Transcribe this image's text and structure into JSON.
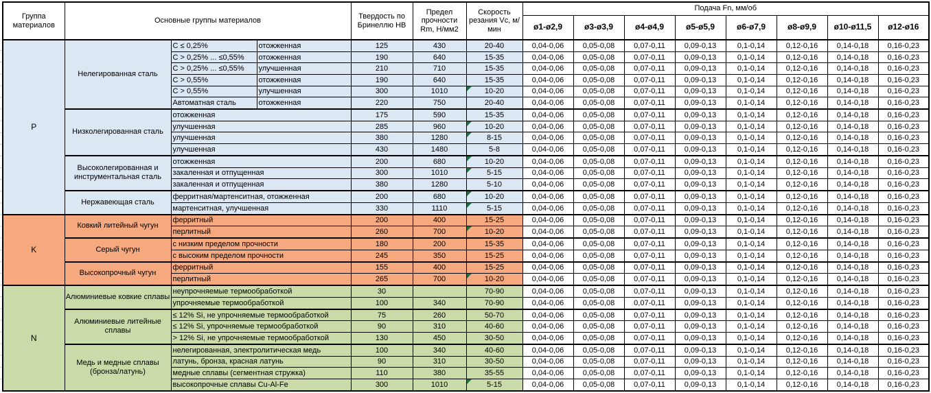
{
  "header": {
    "col_group": "Группа материалов",
    "col_main_groups": "Основные группы материалов",
    "col_hardness": "Твердость по Бринеллю HB",
    "col_strength": "Предел прочности Rm, Н/мм2",
    "col_speed": "Скорость резания Vc, м/мин",
    "feed_title": "Подача Fn, мм/об",
    "feed_cols": [
      "ø1-ø2,9",
      "ø3-ø3,9",
      "ø4-ø4,9",
      "ø5-ø5,9",
      "ø6-ø7,9",
      "ø8-ø9,9",
      "ø10-ø11,5",
      "ø12-ø16"
    ]
  },
  "feed_values": [
    "0,04-0,06",
    "0,05-0,08",
    "0,07-0,11",
    "0,09-0,13",
    "0,1-0,14",
    "0,12-0,16",
    "0,14-0,18",
    "0,16-0,23"
  ],
  "colors": {
    "group_p": "#dbe7f3",
    "group_k": "#f6a97e",
    "group_n": "#c9dba8",
    "border": "#000000",
    "note_triangle": "#1e7145"
  },
  "groups": [
    {
      "code": "P",
      "color": "#dbe7f3",
      "subgroups": [
        {
          "name": "Нелегированная сталь",
          "rows": [
            {
              "c": "C ≤ 0,25%",
              "state": "отожженная",
              "hb": "125",
              "rm": "430",
              "vc": "20-40"
            },
            {
              "c": "C > 0,25% ... ≤0,55%",
              "state": "отожженная",
              "hb": "190",
              "rm": "640",
              "vc": "15-35"
            },
            {
              "c": "C > 0,25% ... ≤0,55%",
              "state": "улучшенная",
              "hb": "210",
              "rm": "710",
              "vc": "15-35"
            },
            {
              "c": "C > 0,55%",
              "state": "отожженная",
              "hb": "190",
              "rm": "640",
              "vc": "15-35"
            },
            {
              "c": "C > 0,55%",
              "state": "улучшенная",
              "hb": "300",
              "rm": "1010",
              "vc": "10-20",
              "note": true
            },
            {
              "c": "Автоматная сталь",
              "state": "отожженная",
              "hb": "220",
              "rm": "750",
              "vc": "20-40"
            }
          ]
        },
        {
          "name": "Низколегированная сталь",
          "rows": [
            {
              "state": "отожженная",
              "hb": "175",
              "rm": "590",
              "vc": "15-35"
            },
            {
              "state": "улучшенная",
              "hb": "285",
              "rm": "960",
              "vc": "10-20",
              "note": true
            },
            {
              "state": "улучшенная",
              "hb": "380",
              "rm": "1280",
              "vc": "8-15",
              "note": true
            },
            {
              "state": "улучшенная",
              "hb": "430",
              "rm": "1480",
              "vc": "5-8"
            }
          ]
        },
        {
          "name": "Высоколегированная и инструментальная сталь",
          "rows": [
            {
              "state": "отожженная",
              "hb": "200",
              "rm": "680",
              "vc": "10-20",
              "note": true
            },
            {
              "state": "закаленная и отпущенная",
              "hb": "300",
              "rm": "1010",
              "vc": "5-15",
              "note": true
            },
            {
              "state": "закаленная и отпущенная",
              "hb": "380",
              "rm": "1280",
              "vc": "5-10"
            }
          ]
        },
        {
          "name": "Нержавеющая сталь",
          "rows": [
            {
              "state": "ферритная/мартенситная, отожженная",
              "hb": "200",
              "rm": "680",
              "vc": "10-20",
              "note": true
            },
            {
              "state": "мартенситная, улучшенная",
              "hb": "330",
              "rm": "1110",
              "vc": "5-15",
              "note": true
            }
          ]
        }
      ]
    },
    {
      "code": "K",
      "color": "#f6a97e",
      "subgroups": [
        {
          "name": "Ковкий литейный чугун",
          "rows": [
            {
              "state": "ферритный",
              "hb": "200",
              "rm": "400",
              "vc": "15-25"
            },
            {
              "state": "перлитный",
              "hb": "260",
              "rm": "700",
              "vc": "10-20",
              "note": true
            }
          ]
        },
        {
          "name": "Серый чугун",
          "rows": [
            {
              "state": "с низким пределом прочности",
              "hb": "180",
              "rm": "200",
              "vc": "15-35"
            },
            {
              "state": "с высоким пределом прочности",
              "hb": "245",
              "rm": "350",
              "vc": "15-25"
            }
          ]
        },
        {
          "name": "Высокопрочный чугун",
          "rows": [
            {
              "state": "ферритный",
              "hb": "155",
              "rm": "400",
              "vc": "15-25"
            },
            {
              "state": "перлитный",
              "hb": "265",
              "rm": "700",
              "vc": "10-20",
              "note": true
            }
          ]
        }
      ]
    },
    {
      "code": "N",
      "color": "#c9dba8",
      "subgroups": [
        {
          "name": "Алюминиевые ковкие сплавы",
          "rows": [
            {
              "state": "неупрочняемые термообработкой",
              "hb": "30",
              "rm": "",
              "vc": "70-90"
            },
            {
              "state": "упрочняемые термообработкой",
              "hb": "100",
              "rm": "340",
              "vc": "70-90"
            }
          ]
        },
        {
          "name": "Алюминиевые литейные сплавы",
          "rows": [
            {
              "state": "≤ 12% Si, не упрочняемые термообработкой",
              "hb": "75",
              "rm": "260",
              "vc": "50-70"
            },
            {
              "state": "≤ 12% Si, упрочняемые термообработкой",
              "hb": "90",
              "rm": "310",
              "vc": "40-60"
            },
            {
              "state": "> 12% Si, не упрочняемые термообработкой",
              "hb": "130",
              "rm": "450",
              "vc": "30-50"
            }
          ]
        },
        {
          "name": "Медь и медные сплавы (бронза/латунь)",
          "rows": [
            {
              "state": "нелегированная, электролитическая медь",
              "hb": "100",
              "rm": "340",
              "vc": "40-60"
            },
            {
              "state": "латунь, бронза, красная латунь",
              "hb": "90",
              "rm": "310",
              "vc": "30-50"
            },
            {
              "state": "медные сплавы (сегментная стружка)",
              "hb": "110",
              "rm": "380",
              "vc": "35-55"
            },
            {
              "state": "высокопрочные сплавы Cu-Al-Fe",
              "hb": "300",
              "rm": "1010",
              "vc": "5-15",
              "note": true
            }
          ]
        }
      ]
    }
  ]
}
